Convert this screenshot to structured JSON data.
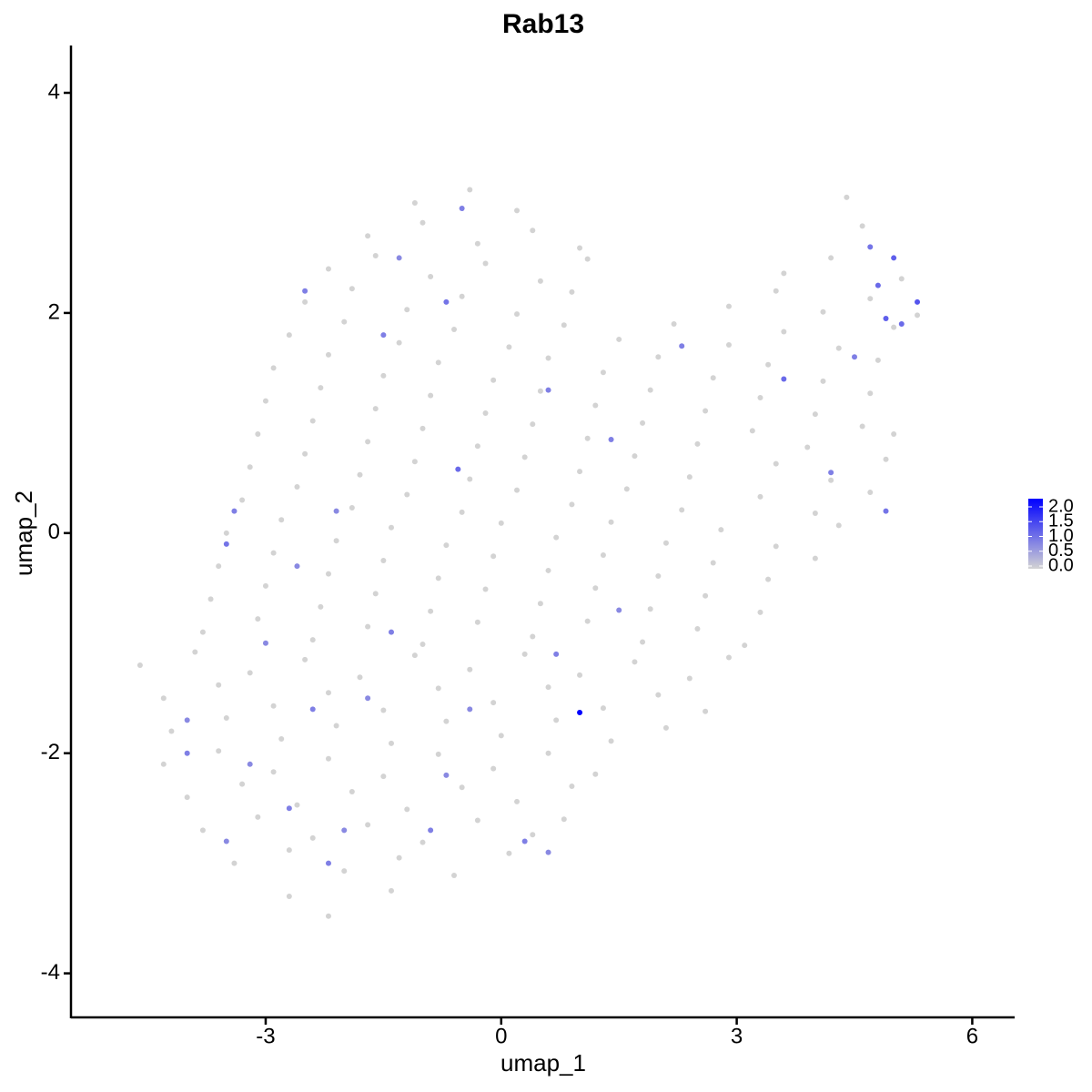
{
  "chart_data": {
    "type": "scatter",
    "title": "Rab13",
    "x_label": "umap_1",
    "y_label": "umap_2",
    "xlim": [
      -5.48,
      6.54
    ],
    "ylim": [
      -4.4,
      4.43
    ],
    "xticks": [
      -3,
      0,
      3,
      6
    ],
    "yticks": [
      -4,
      -2,
      0,
      2,
      4
    ],
    "color_low": "#d3d3d3",
    "color_high": "#0000ff",
    "color_lim": [
      0,
      2.0
    ],
    "color_ticks": [
      {
        "value": 0,
        "label": "0.0"
      },
      {
        "value": 0.5,
        "label": "0.5"
      },
      {
        "value": 1,
        "label": "1.0"
      },
      {
        "value": 1.5,
        "label": "1.5"
      },
      {
        "value": 2,
        "label": "2.0"
      }
    ],
    "x": [
      -1.1,
      -0.4,
      0.2,
      4.4,
      -1.7,
      -1.0,
      -0.3,
      0.4,
      1.0,
      4.6,
      -2.2,
      -1.6,
      -0.9,
      -0.2,
      0.5,
      1.1,
      3.6,
      4.2,
      5.1,
      -2.5,
      -1.9,
      -1.2,
      -0.5,
      0.2,
      0.9,
      2.9,
      3.5,
      4.1,
      4.7,
      5.3,
      -2.7,
      -2.0,
      -1.3,
      -0.6,
      0.1,
      0.8,
      1.5,
      2.2,
      2.9,
      3.6,
      4.3,
      5.0,
      -2.9,
      -2.2,
      -1.5,
      -0.8,
      -0.1,
      0.6,
      1.3,
      2.0,
      2.7,
      3.4,
      4.1,
      4.8,
      -3.0,
      -2.3,
      -1.6,
      -0.9,
      -0.2,
      0.5,
      1.2,
      1.9,
      2.6,
      3.3,
      4.0,
      4.7,
      -3.1,
      -2.4,
      -1.7,
      -1.0,
      -0.3,
      0.4,
      1.1,
      1.8,
      2.5,
      3.2,
      3.9,
      4.6,
      5.0,
      -3.2,
      -2.5,
      -1.8,
      -1.1,
      -0.4,
      0.3,
      1.0,
      1.7,
      2.4,
      3.5,
      4.2,
      4.9,
      -3.3,
      -2.6,
      -1.9,
      -1.2,
      -0.5,
      0.2,
      0.9,
      1.6,
      2.3,
      3.3,
      4.0,
      4.7,
      -3.5,
      -2.8,
      -2.1,
      -1.4,
      -0.7,
      0.0,
      0.7,
      1.4,
      2.1,
      2.8,
      3.5,
      4.3,
      -3.6,
      -2.9,
      -2.2,
      -1.5,
      -0.8,
      -0.1,
      0.6,
      1.3,
      2.0,
      2.7,
      3.4,
      4.0,
      -3.7,
      -3.0,
      -2.3,
      -1.6,
      -0.9,
      -0.2,
      0.5,
      1.2,
      1.9,
      2.6,
      3.3,
      -3.8,
      -3.1,
      -2.4,
      -1.7,
      -1.0,
      -0.3,
      0.4,
      1.1,
      1.8,
      2.5,
      3.1,
      -4.6,
      -3.9,
      -3.2,
      -2.5,
      -1.8,
      -1.1,
      -0.4,
      0.3,
      1.0,
      1.7,
      2.4,
      2.9,
      -4.3,
      -3.6,
      -2.9,
      -2.2,
      -1.5,
      -0.8,
      -0.1,
      0.6,
      1.3,
      2.0,
      2.6,
      -4.2,
      -3.5,
      -2.8,
      -2.1,
      -1.4,
      -0.7,
      0.0,
      0.7,
      1.4,
      2.1,
      -4.3,
      -3.6,
      -2.9,
      -2.2,
      -1.5,
      -0.8,
      -0.1,
      0.6,
      1.2,
      -4.0,
      -3.3,
      -2.6,
      -1.9,
      -1.2,
      -0.5,
      0.2,
      0.9,
      -3.8,
      -3.1,
      -2.4,
      -1.7,
      -1.0,
      -0.3,
      0.4,
      0.8,
      -3.4,
      -2.7,
      -2.0,
      -1.3,
      -0.6,
      0.1,
      -2.7,
      -2.2,
      -1.4,
      -2.5,
      -1.3,
      -0.5,
      -0.55,
      -3.4,
      -3.5,
      -1.7,
      1.0,
      4.8,
      5.3,
      4.9,
      5.1,
      4.7,
      5.0,
      3.6,
      4.2,
      4.9,
      -2.4,
      -3.2,
      -2.7,
      -2.0,
      -0.7,
      0.3,
      -0.9,
      0.6,
      -2.2,
      -3.5,
      -4.0,
      -4.0,
      -3.0,
      -1.5,
      -0.7,
      -2.1,
      0.6,
      1.4,
      2.3,
      1.5,
      0.7,
      -0.4,
      -2.6,
      4.5,
      -1.4
    ],
    "y": [
      3.0,
      3.12,
      2.93,
      3.05,
      2.7,
      2.82,
      2.63,
      2.75,
      2.59,
      2.79,
      2.4,
      2.52,
      2.33,
      2.45,
      2.29,
      2.49,
      2.36,
      2.5,
      2.31,
      2.1,
      2.22,
      2.03,
      2.15,
      1.99,
      2.19,
      2.06,
      2.2,
      2.01,
      2.13,
      1.98,
      1.8,
      1.92,
      1.73,
      1.85,
      1.69,
      1.89,
      1.76,
      1.9,
      1.71,
      1.83,
      1.68,
      1.87,
      1.5,
      1.62,
      1.43,
      1.55,
      1.39,
      1.59,
      1.46,
      1.6,
      1.41,
      1.53,
      1.38,
      1.57,
      1.2,
      1.32,
      1.13,
      1.25,
      1.09,
      1.29,
      1.16,
      1.3,
      1.11,
      1.23,
      1.08,
      1.27,
      0.9,
      1.02,
      0.83,
      0.95,
      0.79,
      0.99,
      0.86,
      1.0,
      0.81,
      0.93,
      0.78,
      0.97,
      0.9,
      0.6,
      0.72,
      0.53,
      0.65,
      0.49,
      0.69,
      0.56,
      0.7,
      0.51,
      0.63,
      0.48,
      0.67,
      0.3,
      0.42,
      0.23,
      0.35,
      0.19,
      0.39,
      0.26,
      0.4,
      0.21,
      0.33,
      0.18,
      0.37,
      0,
      0.12,
      -0.07,
      0.05,
      -0.11,
      0.09,
      -0.04,
      0.1,
      -0.09,
      0.03,
      -0.12,
      0.07,
      -0.3,
      -0.18,
      -0.37,
      -0.25,
      -0.41,
      -0.21,
      -0.34,
      -0.2,
      -0.39,
      -0.27,
      -0.42,
      -0.23,
      -0.6,
      -0.48,
      -0.67,
      -0.55,
      -0.71,
      -0.51,
      -0.64,
      -0.5,
      -0.69,
      -0.57,
      -0.72,
      -0.9,
      -0.78,
      -0.97,
      -0.85,
      -1.01,
      -0.81,
      -0.94,
      -0.8,
      -0.99,
      -0.87,
      -1.02,
      -1.2,
      -1.08,
      -1.27,
      -1.15,
      -1.31,
      -1.11,
      -1.24,
      -1.1,
      -1.29,
      -1.17,
      -1.32,
      -1.13,
      -1.5,
      -1.38,
      -1.57,
      -1.45,
      -1.61,
      -1.41,
      -1.54,
      -1.4,
      -1.59,
      -1.47,
      -1.62,
      -1.8,
      -1.68,
      -1.87,
      -1.75,
      -1.91,
      -1.71,
      -1.84,
      -1.7,
      -1.89,
      -1.77,
      -2.1,
      -1.98,
      -2.17,
      -2.05,
      -2.21,
      -2.01,
      -2.14,
      -2.0,
      -2.19,
      -2.4,
      -2.28,
      -2.47,
      -2.35,
      -2.51,
      -2.31,
      -2.44,
      -2.3,
      -2.7,
      -2.58,
      -2.77,
      -2.65,
      -2.81,
      -2.61,
      -2.74,
      -2.6,
      -3.0,
      -2.88,
      -3.07,
      -2.95,
      -3.11,
      -2.91,
      -3.3,
      -3.48,
      -3.25,
      2.2,
      2.5,
      2.95,
      0.58,
      0.2,
      -0.1,
      -1.5,
      -1.63,
      2.25,
      2.1,
      1.95,
      1.9,
      2.6,
      2.5,
      1.4,
      0.55,
      0.2,
      -1.6,
      -2.1,
      -2.5,
      -2.7,
      -2.2,
      -2.8,
      -2.7,
      -2.9,
      -3.0,
      -2.8,
      -2.0,
      -1.7,
      -1.0,
      1.8,
      2.1,
      0.2,
      1.3,
      0.85,
      1.7,
      -0.7,
      -1.1,
      -1.6,
      -0.3,
      1.6,
      -0.9
    ],
    "values": [
      0,
      0,
      0,
      0,
      0,
      0,
      0,
      0,
      0,
      0,
      0,
      0,
      0,
      0,
      0,
      0,
      0,
      0,
      0,
      0,
      0,
      0,
      0,
      0,
      0,
      0,
      0,
      0,
      0,
      0,
      0,
      0,
      0,
      0,
      0,
      0,
      0,
      0,
      0,
      0,
      0,
      0,
      0,
      0,
      0,
      0,
      0,
      0,
      0,
      0,
      0,
      0,
      0,
      0,
      0,
      0,
      0,
      0,
      0,
      0,
      0,
      0,
      0,
      0,
      0,
      0,
      0,
      0,
      0,
      0,
      0,
      0,
      0,
      0,
      0,
      0,
      0,
      0,
      0,
      0,
      0,
      0,
      0,
      0,
      0,
      0,
      0,
      0,
      0,
      0,
      0,
      0,
      0,
      0,
      0,
      0,
      0,
      0,
      0,
      0,
      0,
      0,
      0,
      0,
      0,
      0,
      0,
      0,
      0,
      0,
      0,
      0,
      0,
      0,
      0,
      0,
      0,
      0,
      0,
      0,
      0,
      0,
      0,
      0,
      0,
      0,
      0,
      0,
      0,
      0,
      0,
      0,
      0,
      0,
      0,
      0,
      0,
      0,
      0,
      0,
      0,
      0,
      0,
      0,
      0,
      0,
      0,
      0,
      0,
      0,
      0,
      0,
      0,
      0,
      0,
      0,
      0,
      0,
      0,
      0,
      0,
      0,
      0,
      0,
      0,
      0,
      0,
      0,
      0,
      0,
      0,
      0,
      0,
      0,
      0,
      0,
      0,
      0,
      0,
      0,
      0,
      0,
      0,
      0,
      0,
      0,
      0,
      0,
      0,
      0,
      0,
      0,
      0,
      0,
      0,
      0,
      0,
      0,
      0,
      0,
      0,
      0,
      0,
      0,
      0,
      0,
      0,
      0,
      0,
      0,
      0,
      0,
      0,
      0,
      0,
      0,
      0.8,
      0.7,
      0.8,
      1.0,
      0.8,
      0.9,
      0.7,
      2.0,
      1.0,
      1.2,
      1.1,
      1.0,
      0.9,
      1.1,
      1.0,
      0.8,
      0.9,
      0.8,
      0.7,
      0.8,
      0.7,
      0.7,
      0.8,
      0.8,
      0.7,
      0.8,
      0.7,
      0.8,
      0.7,
      0.7,
      0.8,
      0.9,
      0.7,
      0.8,
      0.8,
      0.8,
      0.7,
      0.8,
      0.7,
      0.7,
      0.8,
      0.8
    ]
  }
}
